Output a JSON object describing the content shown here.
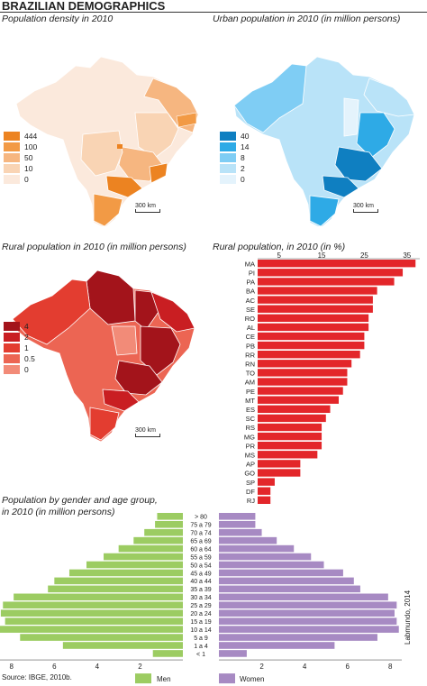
{
  "title": "BRAZILIAN DEMOGRAPHICS",
  "colors": {
    "density_ramp": [
      "#fbe9dc",
      "#f9d4b4",
      "#f6b680",
      "#f29a45",
      "#ec8321"
    ],
    "urban_ramp": [
      "#e4f3fc",
      "#b9e3f8",
      "#7fcdf4",
      "#2eaae6",
      "#0f7fc1"
    ],
    "rural_ramp": [
      "#f28b78",
      "#ec6553",
      "#e33d30",
      "#c91e22",
      "#a3141b"
    ],
    "rural_bar": "#e3262a",
    "men": "#9ccc62",
    "women": "#a78ac3"
  },
  "map_density": {
    "title": "Population density in 2010",
    "legend": [
      "444",
      "100",
      "50",
      "10",
      "0"
    ],
    "scale": "300 km"
  },
  "map_urban": {
    "title": "Urban population in 2010 (in million persons)",
    "legend": [
      "40",
      "14",
      "8",
      "2",
      "0"
    ],
    "scale": "300 km"
  },
  "map_rural": {
    "title": "Rural population in 2010 (in million persons)",
    "legend": [
      "4",
      "2",
      "1",
      "0.5",
      "0"
    ],
    "scale": "300 km"
  },
  "chart_data": [
    {
      "type": "bar",
      "orientation": "horizontal",
      "title": "Rural population, in 2010 (in %)",
      "categories": [
        "MA",
        "PI",
        "PA",
        "BA",
        "AC",
        "SE",
        "RO",
        "AL",
        "CE",
        "PB",
        "RR",
        "RN",
        "TO",
        "AM",
        "PE",
        "MT",
        "ES",
        "SC",
        "RS",
        "MG",
        "PR",
        "MS",
        "AP",
        "GO",
        "SP",
        "DF",
        "RJ"
      ],
      "values": [
        37,
        34,
        32,
        28,
        27,
        27,
        26,
        26,
        25,
        25,
        24,
        22,
        21,
        21,
        20,
        19,
        17,
        16,
        15,
        15,
        15,
        14,
        10,
        10,
        4,
        3,
        3
      ],
      "xticks": [
        "5",
        "15",
        "25",
        "35"
      ],
      "xlim": [
        0,
        38
      ],
      "grid": false
    },
    {
      "type": "bar",
      "orientation": "horizontal-butterfly",
      "title_line1": "Population by gender and age group,",
      "title_line2": "in 2010 (in million persons)",
      "categories": [
        "> 80",
        "75 a 79",
        "70 a 74",
        "65 a 69",
        "60 a 64",
        "55 a 59",
        "50 a 54",
        "45 a 49",
        "40 a 44",
        "35 a 39",
        "30 a 34",
        "25 a 29",
        "20 a 24",
        "15 a 19",
        "10 a 14",
        "5 a 9",
        "1 a 4",
        "< 1"
      ],
      "series": [
        {
          "name": "Men",
          "values": [
            1.2,
            1.3,
            1.8,
            2.3,
            3.0,
            3.7,
            4.5,
            5.3,
            6.0,
            6.3,
            7.9,
            8.4,
            8.5,
            8.3,
            8.7,
            7.6,
            5.6,
            1.4
          ]
        },
        {
          "name": "Women",
          "values": [
            1.7,
            1.7,
            2.0,
            2.7,
            3.5,
            4.3,
            4.9,
            5.8,
            6.3,
            6.6,
            7.9,
            8.3,
            8.2,
            8.3,
            8.4,
            7.4,
            5.4,
            1.3
          ]
        }
      ],
      "xticks_left": [
        "8",
        "6",
        "4",
        "2"
      ],
      "xticks_right": [
        "2",
        "4",
        "6",
        "8"
      ],
      "xlim": [
        0,
        9
      ],
      "legend_position": "bottom"
    }
  ],
  "source": "Source: IBGE, 2010b.",
  "credit": "Labmundo, 2014"
}
